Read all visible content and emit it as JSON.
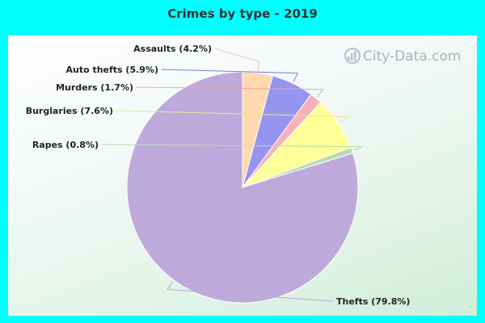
{
  "title": "Crimes by type - 2019",
  "watermark": "City-Data.com",
  "chart_data": {
    "type": "pie",
    "title": "Crimes by type - 2019",
    "start": "12 o'clock, counter-clockwise",
    "slices": [
      {
        "label": "Thefts (79.8%)",
        "value": 79.8,
        "color": "#bea9db",
        "line": "#bea9db"
      },
      {
        "label": "Rapes (0.8%)",
        "value": 0.8,
        "color": "#b8dbb0",
        "line": "#b8dbb0"
      },
      {
        "label": "Burglaries (7.6%)",
        "value": 7.6,
        "color": "#ffff99",
        "line": "#e8e890"
      },
      {
        "label": "Murders (1.7%)",
        "value": 1.7,
        "color": "#f7b0b8",
        "line": "#f2a3ad"
      },
      {
        "label": "Auto thefts (5.9%)",
        "value": 5.9,
        "color": "#9595f0",
        "line": "#7a7ae6"
      },
      {
        "label": "Assaults (4.2%)",
        "value": 4.2,
        "color": "#ffd9b0",
        "line": "#f7c996"
      }
    ]
  }
}
